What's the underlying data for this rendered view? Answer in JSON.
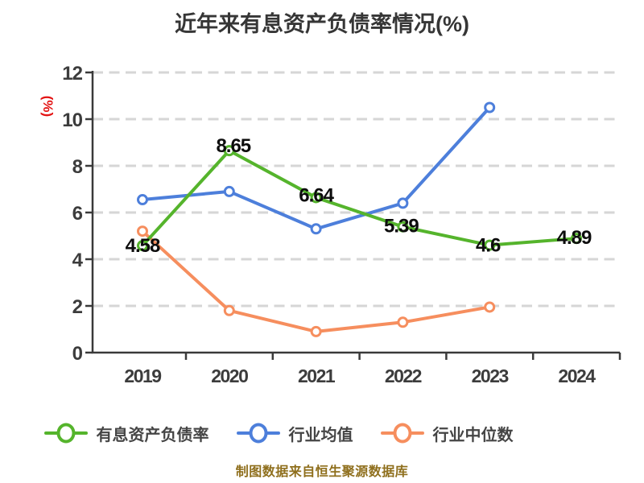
{
  "title": "近年来有息资产负债率情况(%)",
  "caption": "制图数据来自恒生聚源数据库",
  "colors": {
    "title_text": "#363636",
    "axis_text": "#3c3c3c",
    "y_unit_red": "#e31414",
    "caption_gold": "#8f6f1d",
    "series_green": "#55b42c",
    "series_blue": "#4d7fdb",
    "series_orange": "#f68e5e",
    "gridline": "#d6d6d6",
    "marker_fill": "#ffffff"
  },
  "chart_data": {
    "type": "line",
    "title": "近年来有息资产负债率情况(%)",
    "xlabel": "",
    "ylabel": "(%)",
    "categories": [
      "2019",
      "2020",
      "2021",
      "2022",
      "2023",
      "2024"
    ],
    "ylim": [
      0,
      12
    ],
    "yticks": [
      0,
      2,
      4,
      6,
      8,
      10,
      12
    ],
    "grid": "horizontal-dashed",
    "legend_position": "bottom",
    "style": {
      "grid_color": "#d6d6d6",
      "axis_color": "#3a3a3a",
      "marker_fill": "#ffffff"
    },
    "series": [
      {
        "name": "有息资产负债率",
        "color": "#55b42c",
        "values": [
          4.58,
          8.65,
          6.64,
          5.39,
          4.6,
          4.89
        ],
        "point_labels": [
          "4.58",
          "8.65",
          "6.64",
          "5.39",
          "4.6",
          "4.89"
        ],
        "show_labels": true
      },
      {
        "name": "行业均值",
        "color": "#4d7fdb",
        "values": [
          6.55,
          6.9,
          5.3,
          6.4,
          10.5,
          null
        ],
        "show_labels": false
      },
      {
        "name": "行业中位数",
        "color": "#f68e5e",
        "values": [
          5.2,
          1.8,
          0.9,
          1.3,
          1.95,
          null
        ],
        "show_labels": false
      }
    ]
  }
}
